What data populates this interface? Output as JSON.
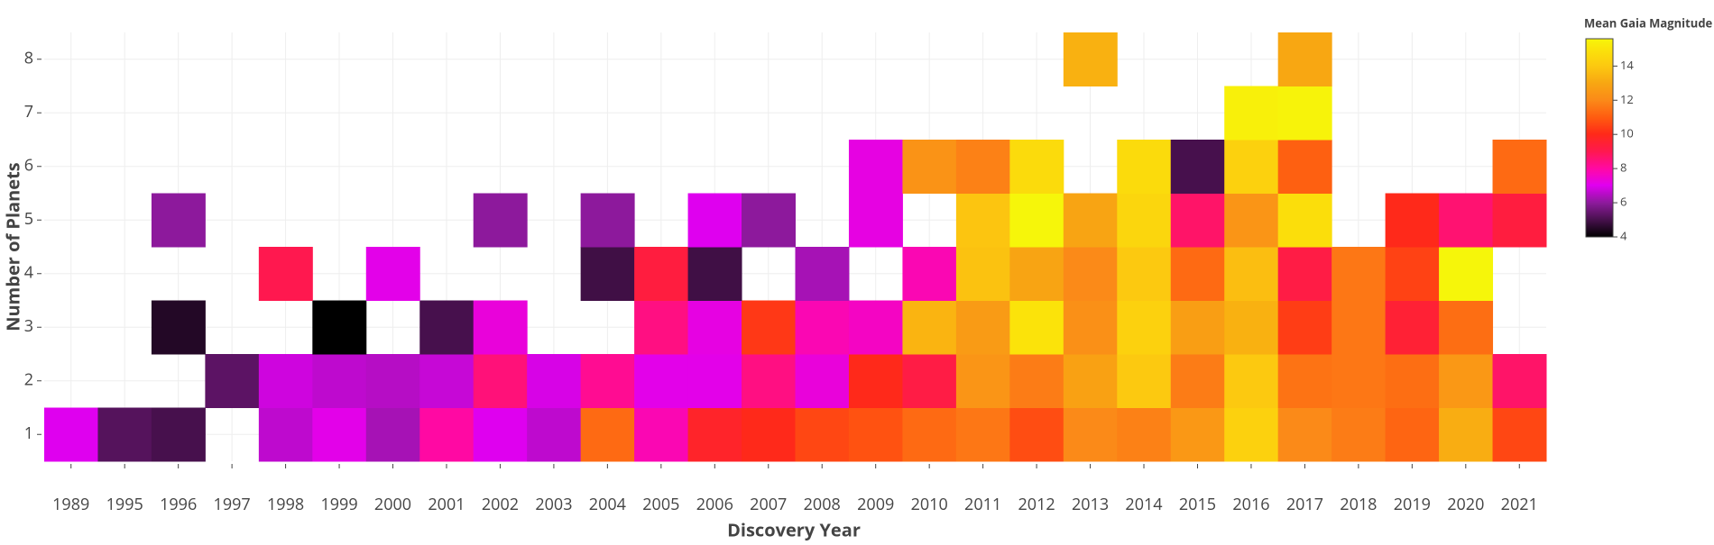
{
  "chart_data": {
    "type": "heatmap",
    "x_title": "Discovery Year",
    "y_title": "Number of Planets",
    "colorbar_title": "Mean Gaia Magnitude",
    "categories": [
      "1989",
      "1995",
      "1996",
      "1997",
      "1998",
      "1999",
      "2000",
      "2001",
      "2002",
      "2003",
      "2004",
      "2005",
      "2006",
      "2007",
      "2008",
      "2009",
      "2010",
      "2011",
      "2012",
      "2013",
      "2014",
      "2015",
      "2016",
      "2017",
      "2018",
      "2019",
      "2020",
      "2021"
    ],
    "y": [
      1,
      2,
      3,
      4,
      5,
      6,
      7,
      8
    ],
    "ylim": [
      0.5,
      8.5
    ],
    "yticks": [
      1,
      2,
      3,
      4,
      5,
      6,
      7,
      8
    ],
    "z": [
      [
        7.0,
        5.2,
        5.0,
        null,
        6.6,
        7.1,
        6.3,
        8.0,
        7.0,
        6.6,
        11.3,
        7.8,
        9.7,
        10.0,
        10.6,
        10.8,
        11.3,
        11.6,
        10.7,
        12.0,
        11.8,
        12.5,
        14.3,
        12.0,
        11.7,
        11.2,
        13.2,
        10.6
      ],
      [
        null,
        null,
        null,
        5.3,
        6.8,
        6.6,
        6.5,
        6.7,
        8.5,
        6.9,
        8.2,
        7.1,
        7.1,
        8.4,
        7.3,
        10.0,
        9.2,
        12.4,
        11.7,
        12.8,
        14.0,
        11.7,
        14.0,
        11.5,
        11.6,
        11.4,
        12.5,
        8.7
      ],
      [
        null,
        null,
        4.5,
        null,
        null,
        4.0,
        null,
        5.0,
        7.3,
        null,
        null,
        8.4,
        7.2,
        10.3,
        7.8,
        7.6,
        13.4,
        12.6,
        15.0,
        12.2,
        14.3,
        12.7,
        13.3,
        10.4,
        11.6,
        9.5,
        11.4,
        null
      ],
      [
        null,
        null,
        null,
        null,
        9.0,
        null,
        7.1,
        null,
        null,
        null,
        4.9,
        9.3,
        4.9,
        null,
        6.3,
        null,
        7.8,
        13.8,
        12.9,
        12.0,
        14.0,
        11.3,
        13.7,
        9.2,
        11.6,
        10.5,
        15.6,
        null
      ],
      [
        null,
        null,
        6.0,
        null,
        null,
        null,
        null,
        null,
        6.0,
        null,
        6.0,
        null,
        7.0,
        6.0,
        null,
        7.2,
        null,
        13.9,
        15.6,
        12.9,
        14.5,
        8.7,
        12.4,
        14.8,
        null,
        10.0,
        8.6,
        9.3
      ],
      [
        null,
        null,
        null,
        null,
        null,
        null,
        null,
        null,
        null,
        null,
        null,
        null,
        null,
        null,
        null,
        7.2,
        12.3,
        11.8,
        14.7,
        null,
        14.7,
        5.0,
        14.3,
        11.1,
        null,
        null,
        null,
        11.3
      ],
      [
        null,
        null,
        null,
        null,
        null,
        null,
        null,
        null,
        null,
        null,
        null,
        null,
        null,
        null,
        null,
        null,
        null,
        null,
        null,
        null,
        null,
        null,
        15.4,
        15.5,
        null,
        null,
        null,
        null
      ],
      [
        null,
        null,
        null,
        null,
        null,
        null,
        null,
        null,
        null,
        null,
        null,
        null,
        null,
        null,
        null,
        null,
        null,
        null,
        null,
        13.3,
        null,
        null,
        null,
        13.0,
        null,
        null,
        null,
        null
      ]
    ],
    "zlim": [
      4,
      15.6
    ],
    "zticks": [
      4,
      6,
      8,
      10,
      12,
      14
    ],
    "colorscale": [
      [
        0,
        "#000000"
      ],
      [
        0.09,
        "#4a1150"
      ],
      [
        0.17,
        "#8b1a9a"
      ],
      [
        0.26,
        "#e000f0"
      ],
      [
        0.34,
        "#ff08a8"
      ],
      [
        0.43,
        "#ff1850"
      ],
      [
        0.52,
        "#ff2a18"
      ],
      [
        0.6,
        "#ff5a10"
      ],
      [
        0.69,
        "#fb8a18"
      ],
      [
        0.78,
        "#f8a812"
      ],
      [
        0.86,
        "#fcc810"
      ],
      [
        0.95,
        "#fbe40a"
      ],
      [
        1,
        "#f6f60a"
      ]
    ],
    "grid": true
  }
}
